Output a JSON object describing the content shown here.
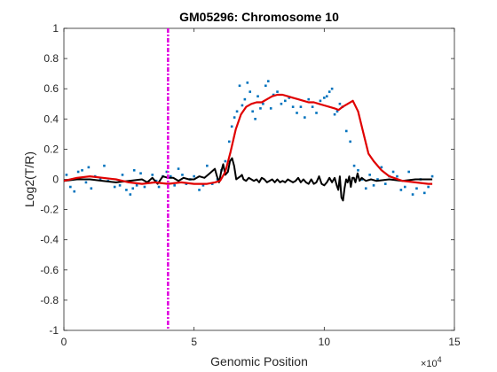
{
  "chart_data": {
    "type": "scatter",
    "title": "GM05296: Chromosome 10",
    "xlabel": "Genomic Position",
    "ylabel": "Log2(T/R)",
    "xlim": [
      0,
      150000
    ],
    "ylim": [
      -1,
      1
    ],
    "x_exponent_label": "×10",
    "x_exponent_power": "4",
    "xticks": [
      0,
      50000,
      100000,
      150000
    ],
    "xtick_labels": [
      "0",
      "5",
      "10",
      "15"
    ],
    "yticks": [
      1,
      0.8,
      0.6,
      0.4,
      0.2,
      0,
      -0.2,
      -0.4,
      -0.6,
      -0.8,
      -1
    ],
    "ytick_labels": [
      "1",
      "0.8",
      "0.6",
      "0.4",
      "0.2",
      "0",
      "-0.2",
      "-0.4",
      "-0.6",
      "-0.8",
      "-1"
    ],
    "grid": false,
    "colors": {
      "points": "#0072BD",
      "smoothed": "#E00000",
      "difference": "#000000",
      "marker_line": "#E000E0",
      "axis": "#262626"
    },
    "vertical_line_x": 40000,
    "series": [
      {
        "kind": "scatter",
        "x": [
          1000,
          2500,
          4000,
          5500,
          7000,
          8500,
          9500,
          10500,
          12000,
          14000,
          15500,
          17000,
          19500,
          21500,
          22500,
          24000,
          25500,
          26500,
          27000,
          28000,
          29500,
          31000,
          32500,
          34000,
          35500,
          36500,
          38000,
          39500,
          41000,
          42500,
          44000,
          45500,
          47000,
          48500,
          50000,
          52000,
          53500,
          55000,
          57000,
          59000,
          60500,
          62000,
          63500,
          64500,
          65500,
          66500,
          67500,
          68500,
          69500,
          70500,
          71500,
          72500,
          73500,
          74500,
          75500,
          76500,
          77500,
          78500,
          79500,
          80500,
          82000,
          83500,
          85000,
          86500,
          88000,
          89500,
          91000,
          92500,
          94000,
          95500,
          97000,
          98500,
          100000,
          101000,
          102000,
          103000,
          104000,
          105000,
          106000,
          107000,
          108500,
          110000,
          111500,
          113000,
          114500,
          116000,
          117500,
          119000,
          120500,
          122000,
          123500,
          125000,
          126500,
          128000,
          129500,
          131000,
          132500,
          134000,
          135500,
          137000,
          138500,
          140000,
          141500
        ],
        "y": [
          0.03,
          -0.05,
          -0.08,
          0.05,
          0.06,
          -0.02,
          0.08,
          -0.06,
          0.02,
          0.0,
          0.09,
          -0.01,
          -0.05,
          -0.04,
          0.03,
          -0.07,
          -0.1,
          -0.06,
          0.06,
          -0.04,
          0.04,
          -0.05,
          -0.02,
          0.03,
          -0.01,
          -0.05,
          0.02,
          0.05,
          0.02,
          -0.04,
          0.07,
          0.03,
          -0.03,
          0.0,
          0.02,
          -0.07,
          -0.04,
          0.09,
          -0.03,
          0.0,
          0.06,
          0.12,
          0.25,
          0.35,
          0.41,
          0.45,
          0.62,
          0.49,
          0.53,
          0.64,
          0.58,
          0.45,
          0.4,
          0.55,
          0.47,
          0.5,
          0.62,
          0.65,
          0.47,
          0.56,
          0.58,
          0.5,
          0.52,
          0.54,
          0.48,
          0.44,
          0.48,
          0.41,
          0.53,
          0.48,
          0.44,
          0.52,
          0.54,
          0.55,
          0.58,
          0.6,
          0.43,
          0.45,
          0.5,
          0.48,
          0.32,
          0.25,
          0.09,
          0.06,
          0.0,
          -0.06,
          0.03,
          -0.04,
          0.0,
          0.08,
          -0.03,
          0.02,
          0.05,
          0.02,
          -0.07,
          -0.05,
          0.05,
          -0.1,
          -0.06,
          0.0,
          -0.09,
          -0.05,
          0.02
        ]
      },
      {
        "kind": "line",
        "x": [
          0,
          5000,
          10000,
          15000,
          20000,
          25000,
          30000,
          35000,
          40000,
          45000,
          50000,
          55000,
          58000,
          60000,
          62000,
          64000,
          66000,
          68000,
          70000,
          72000,
          74000,
          76000,
          78000,
          80000,
          82000,
          84000,
          86000,
          88000,
          90000,
          92000,
          94000,
          96000,
          98000,
          100000,
          102000,
          104000,
          105500,
          107000,
          109000,
          111000,
          113000,
          115000,
          117000,
          119000,
          122000,
          125000,
          130000,
          135000,
          140000,
          141500
        ],
        "y": [
          -0.01,
          0.01,
          0.02,
          0.01,
          0.0,
          -0.02,
          -0.03,
          -0.02,
          -0.03,
          -0.02,
          -0.03,
          -0.03,
          -0.02,
          -0.01,
          0.05,
          0.18,
          0.33,
          0.43,
          0.48,
          0.5,
          0.51,
          0.51,
          0.53,
          0.55,
          0.56,
          0.56,
          0.55,
          0.54,
          0.53,
          0.52,
          0.51,
          0.51,
          0.5,
          0.49,
          0.48,
          0.47,
          0.46,
          0.48,
          0.5,
          0.52,
          0.45,
          0.31,
          0.17,
          0.12,
          0.06,
          0.02,
          -0.01,
          -0.02,
          -0.03,
          -0.03
        ]
      },
      {
        "kind": "line",
        "x": [
          0,
          5000,
          10000,
          15000,
          20000,
          25000,
          30000,
          32000,
          34000,
          36000,
          38000,
          40000,
          42000,
          44000,
          46000,
          48000,
          50000,
          52000,
          54000,
          56000,
          58000,
          58800,
          59600,
          60400,
          61200,
          62000,
          63000,
          63800,
          64600,
          65400,
          66200,
          67000,
          67800,
          68400,
          69000,
          70000,
          71000,
          72000,
          73000,
          74000,
          75000,
          76000,
          77000,
          78000,
          79000,
          80000,
          81000,
          82000,
          83000,
          84000,
          85000,
          86000,
          87000,
          88000,
          89000,
          90000,
          91000,
          92000,
          93000,
          94000,
          95000,
          96000,
          97000,
          98000,
          99000,
          100000,
          101000,
          102000,
          103000,
          104000,
          104800,
          105400,
          106000,
          106600,
          107200,
          107800,
          108400,
          109000,
          109600,
          110200,
          110800,
          111400,
          112000,
          112800,
          113600,
          114400,
          115200,
          116000,
          118000,
          120000,
          125000,
          130000,
          135000,
          140000,
          141500
        ],
        "y": [
          -0.01,
          0.0,
          0.0,
          -0.01,
          -0.02,
          -0.01,
          0.0,
          -0.02,
          0.01,
          -0.03,
          0.02,
          0.01,
          0.01,
          -0.01,
          0.01,
          0.0,
          0.0,
          0.02,
          0.01,
          0.04,
          0.07,
          0.02,
          -0.02,
          0.05,
          0.1,
          0.03,
          0.05,
          0.12,
          0.14,
          0.09,
          0.0,
          0.01,
          0.02,
          0.03,
          0.0,
          -0.01,
          0.01,
          0.0,
          -0.01,
          0.0,
          -0.02,
          0.01,
          0.0,
          -0.02,
          -0.01,
          0.0,
          -0.02,
          0.0,
          -0.02,
          -0.01,
          -0.02,
          0.0,
          -0.01,
          -0.02,
          -0.01,
          0.01,
          -0.02,
          0.0,
          -0.02,
          -0.03,
          0.0,
          -0.03,
          -0.02,
          0.02,
          -0.03,
          -0.04,
          -0.02,
          0.01,
          -0.02,
          0.01,
          -0.04,
          -0.07,
          0.02,
          -0.12,
          -0.14,
          -0.06,
          0.0,
          -0.02,
          0.02,
          -0.05,
          0.01,
          0.01,
          -0.02,
          0.04,
          -0.01,
          0.01,
          0.0,
          -0.01,
          0.0,
          -0.01,
          0.0,
          -0.01,
          0.0,
          0.0,
          0.0
        ]
      }
    ]
  }
}
